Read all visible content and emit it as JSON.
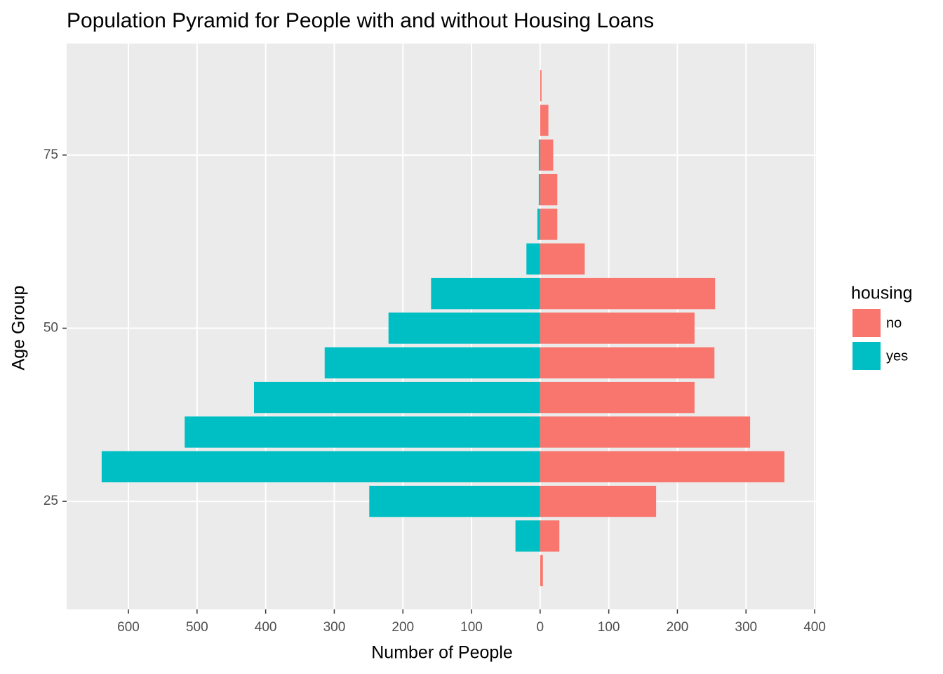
{
  "chart_data": {
    "type": "bar",
    "orientation": "horizontal",
    "title": "Population Pyramid for People with and without Housing Loans",
    "xlabel": "Number of People",
    "ylabel": "Age Group",
    "legend_title": "housing",
    "legend_position": "right",
    "grid": true,
    "y": [
      15,
      20,
      25,
      30,
      35,
      40,
      45,
      50,
      55,
      60,
      65,
      70,
      75,
      80,
      85
    ],
    "series": [
      {
        "name": "no",
        "color": "#F8766D",
        "values": [
          4,
          28,
          169,
          356,
          306,
          225,
          254,
          225,
          255,
          65,
          25,
          25,
          19,
          12,
          2
        ]
      },
      {
        "name": "yes",
        "color": "#00BFC4",
        "values": [
          0,
          -36,
          -249,
          -639,
          -518,
          -417,
          -314,
          -221,
          -159,
          -20,
          -4,
          -2,
          -2,
          0,
          0
        ]
      }
    ],
    "xlim": [
      -690,
      402
    ],
    "xticks": [
      {
        "value": -600,
        "label": "600"
      },
      {
        "value": -500,
        "label": "500"
      },
      {
        "value": -400,
        "label": "400"
      },
      {
        "value": -300,
        "label": "300"
      },
      {
        "value": -200,
        "label": "200"
      },
      {
        "value": -100,
        "label": "100"
      },
      0,
      100,
      200,
      300,
      400
    ],
    "ylim": [
      9.4,
      91.1
    ],
    "yticks": [
      25,
      50,
      75
    ]
  }
}
